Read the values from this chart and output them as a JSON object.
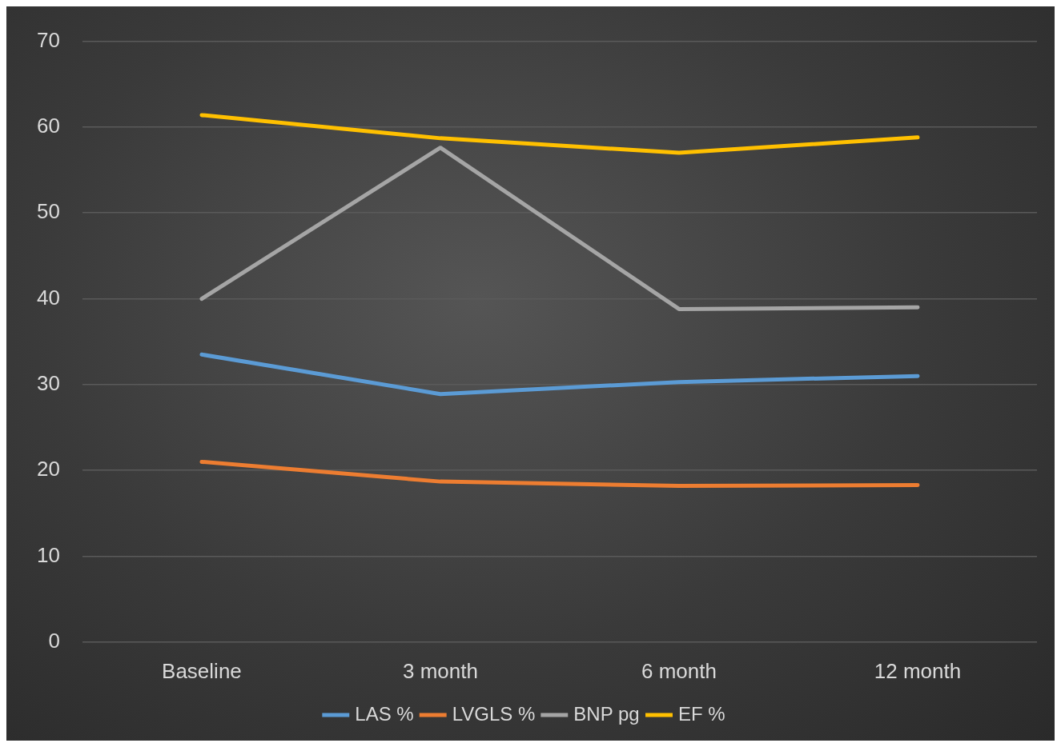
{
  "chart_data": {
    "type": "line",
    "categories": [
      "Baseline",
      "3 month",
      "6 month",
      "12 month"
    ],
    "series": [
      {
        "name": "LAS %",
        "color": "#5b9bd5",
        "values": [
          33.5,
          28.9,
          30.3,
          31.0
        ]
      },
      {
        "name": "LVGLS %",
        "color": "#ed7d31",
        "values": [
          21.0,
          18.7,
          18.2,
          18.3
        ]
      },
      {
        "name": "BNP pg",
        "color": "#a5a5a5",
        "values": [
          40.0,
          57.6,
          38.8,
          39.0
        ]
      },
      {
        "name": "EF %",
        "color": "#ffc000",
        "values": [
          61.4,
          58.7,
          57.0,
          58.8
        ]
      }
    ],
    "ylim": [
      0,
      70
    ],
    "yticks": [
      0,
      10,
      20,
      30,
      40,
      50,
      60,
      70
    ],
    "grid": "y",
    "legend": "bottom",
    "marker": "none",
    "line_style": "solid"
  }
}
